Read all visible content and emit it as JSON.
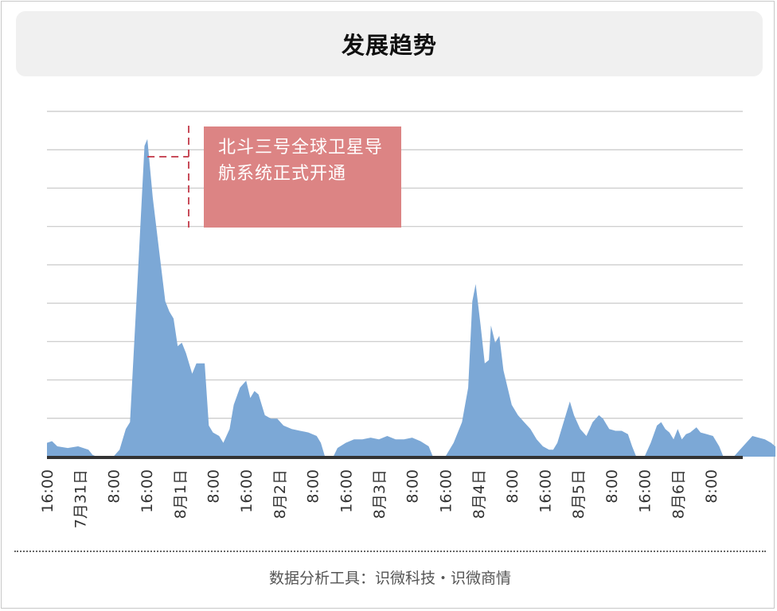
{
  "header": {
    "title": "发展趋势"
  },
  "annotation": {
    "text": "北斗三号全球卫星导航系统正式开通"
  },
  "footer": {
    "text": "数据分析工具：识微科技・识微商情"
  },
  "colors": {
    "area_fill": "#7ca8d6",
    "annotation_bg": "#dc8484",
    "annotation_line": "#c84c5a",
    "grid": "#c8c8c8",
    "baseline": "#333333"
  },
  "chart_data": {
    "type": "area",
    "title": "发展趋势",
    "xlabel": "",
    "ylabel": "",
    "grid": true,
    "x_ticks": [
      "16:00",
      "7月31日",
      "8:00",
      "16:00",
      "8月1日",
      "8:00",
      "16:00",
      "8月2日",
      "8:00",
      "16:00",
      "8月3日",
      "8:00",
      "16:00",
      "8月4日",
      "8:00",
      "16:00",
      "8月5日",
      "8:00",
      "16:00",
      "8月6日",
      "8:00"
    ],
    "y_relative_max": 1.0,
    "series": [
      {
        "points": [
          [
            0,
            0.04
          ],
          [
            1.2,
            0.045
          ],
          [
            2.5,
            0.03
          ],
          [
            5,
            0.025
          ],
          [
            7.5,
            0.03
          ],
          [
            10,
            0.02
          ],
          [
            11,
            0.005
          ],
          [
            12,
            0.0
          ],
          [
            16,
            0.0
          ],
          [
            17.5,
            0.02
          ],
          [
            19,
            0.08
          ],
          [
            20,
            0.1
          ],
          [
            22,
            0.55
          ],
          [
            23.5,
            0.9
          ],
          [
            24.2,
            0.92
          ],
          [
            25.5,
            0.75
          ],
          [
            27,
            0.6
          ],
          [
            28.5,
            0.45
          ],
          [
            29.5,
            0.42
          ],
          [
            30.5,
            0.4
          ],
          [
            31.5,
            0.32
          ],
          [
            32.5,
            0.33
          ],
          [
            33.5,
            0.3
          ],
          [
            35,
            0.24
          ],
          [
            36,
            0.27
          ],
          [
            37,
            0.27
          ],
          [
            38,
            0.27
          ],
          [
            39,
            0.09
          ],
          [
            40,
            0.07
          ],
          [
            41.5,
            0.06
          ],
          [
            42.5,
            0.04
          ],
          [
            44,
            0.08
          ],
          [
            45,
            0.15
          ],
          [
            46.5,
            0.2
          ],
          [
            48,
            0.22
          ],
          [
            49,
            0.17
          ],
          [
            50,
            0.19
          ],
          [
            51,
            0.18
          ],
          [
            52.5,
            0.12
          ],
          [
            54,
            0.11
          ],
          [
            55.5,
            0.11
          ],
          [
            57,
            0.09
          ],
          [
            59,
            0.08
          ],
          [
            61,
            0.075
          ],
          [
            63,
            0.07
          ],
          [
            65,
            0.06
          ],
          [
            66,
            0.04
          ],
          [
            67,
            0.0
          ],
          [
            69,
            0.0
          ],
          [
            70,
            0.025
          ],
          [
            72,
            0.04
          ],
          [
            74,
            0.05
          ],
          [
            76,
            0.05
          ],
          [
            78,
            0.055
          ],
          [
            80,
            0.05
          ],
          [
            82,
            0.06
          ],
          [
            84,
            0.05
          ],
          [
            86,
            0.05
          ],
          [
            88,
            0.055
          ],
          [
            90,
            0.045
          ],
          [
            92,
            0.03
          ],
          [
            93,
            0.0
          ],
          [
            96,
            0.0
          ],
          [
            98,
            0.04
          ],
          [
            100,
            0.1
          ],
          [
            101.5,
            0.2
          ],
          [
            102.5,
            0.45
          ],
          [
            103.3,
            0.5
          ],
          [
            104.5,
            0.38
          ],
          [
            105.5,
            0.27
          ],
          [
            106.5,
            0.28
          ],
          [
            107,
            0.38
          ],
          [
            108,
            0.33
          ],
          [
            109,
            0.35
          ],
          [
            110,
            0.25
          ],
          [
            112,
            0.15
          ],
          [
            113.5,
            0.12
          ],
          [
            115,
            0.1
          ],
          [
            116.5,
            0.08
          ],
          [
            118,
            0.05
          ],
          [
            119.5,
            0.03
          ],
          [
            121,
            0.02
          ],
          [
            122,
            0.02
          ],
          [
            123,
            0.04
          ],
          [
            125,
            0.12
          ],
          [
            126,
            0.16
          ],
          [
            127,
            0.12
          ],
          [
            128.5,
            0.08
          ],
          [
            130,
            0.06
          ],
          [
            131.5,
            0.1
          ],
          [
            133,
            0.12
          ],
          [
            134,
            0.11
          ],
          [
            135.5,
            0.08
          ],
          [
            137,
            0.075
          ],
          [
            138.5,
            0.075
          ],
          [
            140,
            0.065
          ],
          [
            141,
            0.03
          ],
          [
            142,
            0.0
          ],
          [
            144,
            0.0
          ],
          [
            145.5,
            0.04
          ],
          [
            147,
            0.09
          ],
          [
            148,
            0.1
          ],
          [
            149,
            0.08
          ],
          [
            150,
            0.07
          ],
          [
            151,
            0.05
          ],
          [
            152,
            0.08
          ],
          [
            153,
            0.05
          ],
          [
            154,
            0.065
          ],
          [
            155,
            0.07
          ],
          [
            156.5,
            0.085
          ],
          [
            157.5,
            0.07
          ],
          [
            159,
            0.065
          ],
          [
            160.5,
            0.06
          ],
          [
            162,
            0.03
          ],
          [
            163,
            0.0
          ],
          [
            165.5,
            0.0
          ],
          [
            167,
            0.02
          ],
          [
            168.5,
            0.04
          ],
          [
            170,
            0.06
          ],
          [
            171.5,
            0.055
          ],
          [
            173,
            0.05
          ],
          [
            174.5,
            0.04
          ],
          [
            175.5,
            0.03
          ],
          [
            178,
            0.025
          ]
        ]
      }
    ],
    "annotations": [
      {
        "text": "北斗三号全球卫星导航系统正式开通",
        "at_x": 24.2
      }
    ]
  }
}
